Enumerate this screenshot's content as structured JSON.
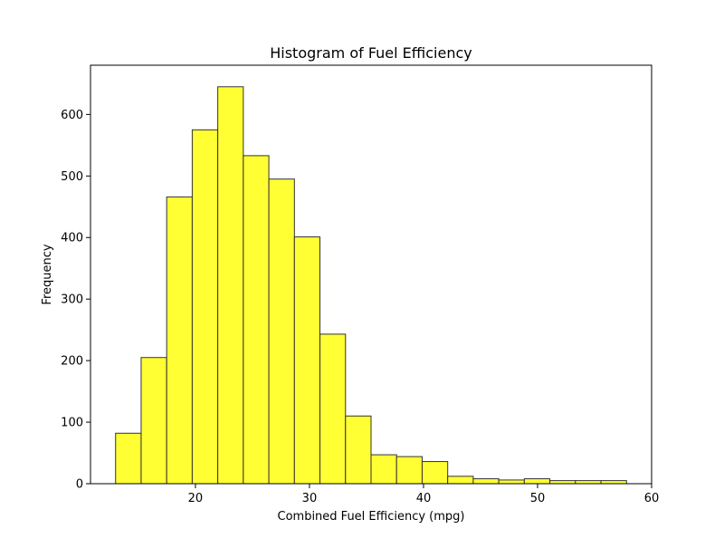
{
  "chart_data": {
    "type": "bar",
    "title": "Histogram of Fuel Efficiency",
    "xlabel": "Combined Fuel Efficiency (mpg)",
    "ylabel": "Frequency",
    "xlim": [
      10.8,
      60
    ],
    "ylim": [
      0,
      680
    ],
    "xticks": [
      20,
      30,
      40,
      50,
      60
    ],
    "yticks": [
      0,
      100,
      200,
      300,
      400,
      500,
      600
    ],
    "grid": false,
    "bin_edges": [
      13.0,
      15.24,
      17.48,
      19.72,
      21.96,
      24.2,
      26.44,
      28.68,
      30.92,
      33.16,
      35.4,
      37.64,
      39.88,
      42.12,
      44.36,
      46.6,
      48.84,
      51.08,
      53.32,
      55.56,
      57.8
    ],
    "values": [
      82,
      205,
      466,
      575,
      645,
      533,
      495,
      401,
      243,
      110,
      47,
      44,
      36,
      12,
      8,
      6,
      8,
      5,
      5,
      5
    ],
    "bar_color": "#ffff33",
    "edge_color": "#333333"
  }
}
